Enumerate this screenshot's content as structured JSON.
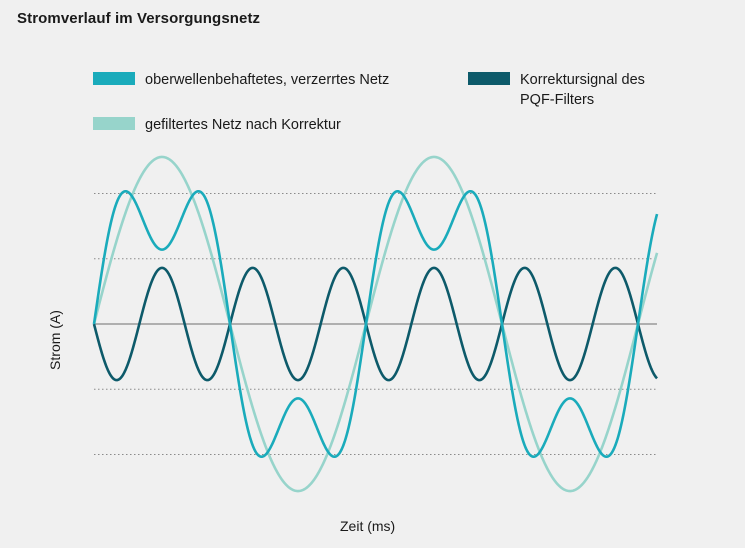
{
  "title": "Stromverlauf im Versorgungsnetz",
  "colors": {
    "distorted": "#1aabbb",
    "filtered": "#97d4cb",
    "correction": "#0d5a6a",
    "zero_line": "#999999",
    "grid": "#8a8a8a",
    "background": "#f0f0f0"
  },
  "legend": [
    {
      "key": "distorted",
      "label": "oberwellenbehaftetes, verzerrtes Netz"
    },
    {
      "key": "correction",
      "label": "Korrektursignal des\nPQF-Filters"
    },
    {
      "key": "filtered",
      "label": "gefiltertes Netz nach Korrektur"
    }
  ],
  "chart_data": {
    "type": "line",
    "title": "Stromverlauf im Versorgungsnetz",
    "xlabel": "Zeit (ms)",
    "ylabel": "Strom (A)",
    "ticks_shown": false,
    "grid": "horizontal dotted",
    "gridlines_y": [
      -1.0,
      -0.5,
      0.5,
      1.0
    ],
    "zero_line": true,
    "xlim": [
      0,
      2.07
    ],
    "ylim": [
      -1.3,
      1.3
    ],
    "x_unit": "fundamental periods",
    "series": [
      {
        "name": "oberwellenbehaftetes, verzerrtes Netz",
        "key": "distorted",
        "formula": "1.0*sin(2*pi*x) + 0.43*sin(6*pi*x)",
        "components": [
          {
            "harmonic": 1,
            "amplitude": 1.0
          },
          {
            "harmonic": 3,
            "amplitude": 0.43
          }
        ]
      },
      {
        "name": "gefiltertes Netz nach Korrektur",
        "key": "filtered",
        "formula": "1.28*sin(2*pi*x)",
        "components": [
          {
            "harmonic": 1,
            "amplitude": 1.28
          }
        ]
      },
      {
        "name": "Korrektursignal des PQF-Filters",
        "key": "correction",
        "formula": "-0.43*sin(6*pi*x)",
        "components": [
          {
            "harmonic": 3,
            "amplitude": -0.43
          }
        ]
      }
    ]
  }
}
